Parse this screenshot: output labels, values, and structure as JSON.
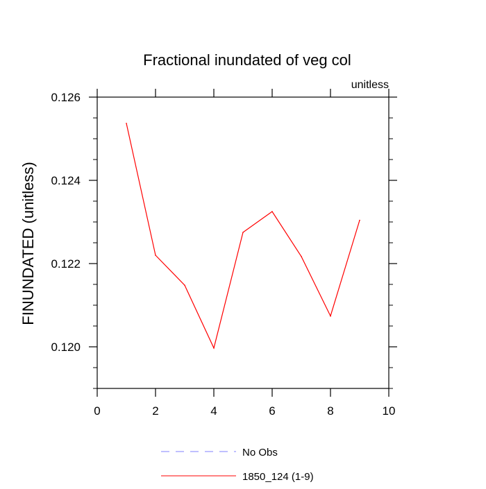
{
  "chart_data": {
    "type": "line",
    "title": "Fractional inundated of veg col",
    "subtitle": "unitless",
    "xlabel": "",
    "ylabel": "FINUNDATED  (unitless)",
    "xlim": [
      0,
      10
    ],
    "ylim": [
      0.119,
      0.126
    ],
    "x_ticks": [
      0,
      2,
      4,
      6,
      8,
      10
    ],
    "x_tick_labels": [
      "0",
      "2",
      "4",
      "6",
      "8",
      "10"
    ],
    "y_ticks": [
      0.12,
      0.122,
      0.124,
      0.126
    ],
    "y_tick_labels": [
      "0.120",
      "0.122",
      "0.124",
      "0.126"
    ],
    "grid": false,
    "legend_position": "bottom",
    "series": [
      {
        "name": "No Obs",
        "color": "#8080ff",
        "dash": "dashed",
        "x": [],
        "y": []
      },
      {
        "name": "1850_124 (1-9)",
        "color": "#ff0000",
        "dash": "solid",
        "x": [
          1,
          2,
          3,
          4,
          5,
          6,
          7,
          8,
          9
        ],
        "y": [
          0.12537,
          0.1222,
          0.12148,
          0.11997,
          0.12275,
          0.12325,
          0.12217,
          0.12074,
          0.12304
        ]
      }
    ]
  }
}
